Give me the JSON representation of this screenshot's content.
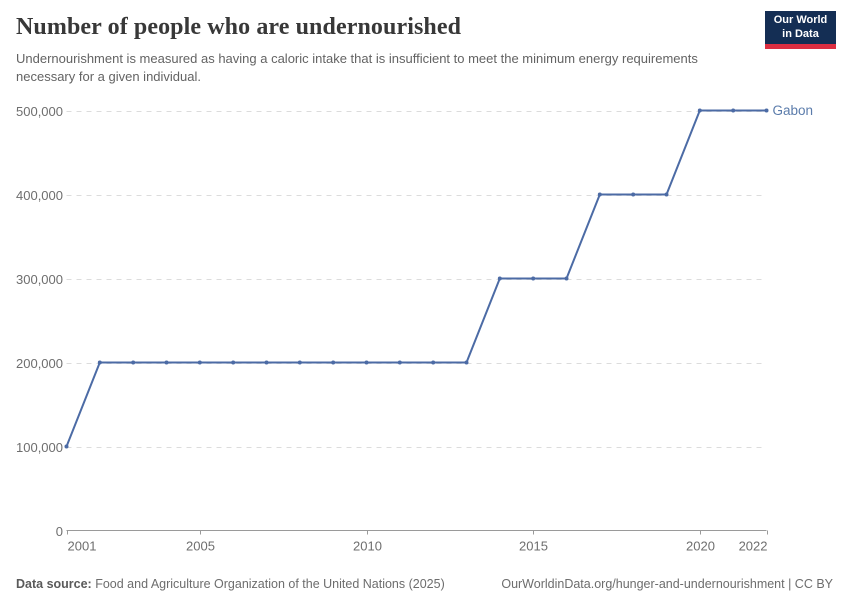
{
  "header": {
    "title": "Number of people who are undernourished",
    "subtitle": "Undernourishment is measured as having a caloric intake that is insufficient to meet the minimum energy requirements necessary for a given individual.",
    "logo": {
      "line1": "Our World",
      "line2": "in Data",
      "bg_color": "#142e54",
      "accent_color": "#dc2e41"
    }
  },
  "chart_data": {
    "type": "line",
    "title": "Number of people who are undernourished",
    "xlabel": "",
    "ylabel": "",
    "xlim": [
      2001,
      2022
    ],
    "ylim": [
      0,
      500000
    ],
    "grid": "horizontal-dashed",
    "legend_position": "end-of-line-label",
    "series": [
      {
        "name": "Gabon",
        "color": "#4c6ba5",
        "label_color": "#5b7cab",
        "x": [
          2001,
          2002,
          2003,
          2004,
          2005,
          2006,
          2007,
          2008,
          2009,
          2010,
          2011,
          2012,
          2013,
          2014,
          2015,
          2016,
          2017,
          2018,
          2019,
          2020,
          2021,
          2022
        ],
        "values": [
          100000,
          200000,
          200000,
          200000,
          200000,
          200000,
          200000,
          200000,
          200000,
          200000,
          200000,
          200000,
          200000,
          300000,
          300000,
          300000,
          400000,
          400000,
          400000,
          500000,
          500000,
          500000
        ]
      }
    ],
    "xticks": [
      {
        "value": 2001,
        "label": "2001"
      },
      {
        "value": 2005,
        "label": "2005"
      },
      {
        "value": 2010,
        "label": "2010"
      },
      {
        "value": 2015,
        "label": "2015"
      },
      {
        "value": 2020,
        "label": "2020"
      },
      {
        "value": 2022,
        "label": "2022"
      }
    ],
    "yticks": [
      {
        "value": 0,
        "label": "0"
      },
      {
        "value": 100000,
        "label": "100,000"
      },
      {
        "value": 200000,
        "label": "200,000"
      },
      {
        "value": 300000,
        "label": "300,000"
      },
      {
        "value": 400000,
        "label": "400,000"
      },
      {
        "value": 500000,
        "label": "500,000"
      }
    ],
    "colors": {
      "gridline": "#dcdcdc",
      "axis": "#9a9a9a",
      "tick_label": "#6e6e6e"
    }
  },
  "footer": {
    "datasource_label": "Data source:",
    "datasource_value": "Food and Agriculture Organization of the United Nations (2025)",
    "link": "OurWorldinData.org/hunger-and-undernourishment | CC BY"
  }
}
